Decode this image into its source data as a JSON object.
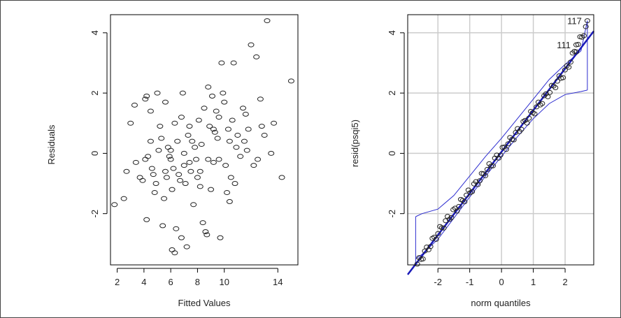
{
  "chart_data": [
    {
      "type": "scatter",
      "xlabel": "Fitted Values",
      "ylabel": "Residuals",
      "xlim": [
        1.5,
        15.5
      ],
      "ylim": [
        -3.7,
        4.6
      ],
      "xticks": [
        2,
        4,
        6,
        8,
        10,
        14
      ],
      "yticks": [
        -2,
        0,
        2,
        4
      ],
      "points": [
        [
          1.8,
          -1.7
        ],
        [
          2.5,
          -1.5
        ],
        [
          2.7,
          -0.6
        ],
        [
          3.0,
          1.0
        ],
        [
          3.3,
          1.6
        ],
        [
          3.4,
          -0.3
        ],
        [
          3.7,
          -0.8
        ],
        [
          3.9,
          -0.9
        ],
        [
          4.1,
          -0.2
        ],
        [
          4.1,
          1.8
        ],
        [
          4.2,
          1.9
        ],
        [
          4.2,
          -2.2
        ],
        [
          4.3,
          -0.1
        ],
        [
          4.5,
          1.4
        ],
        [
          4.5,
          0.4
        ],
        [
          4.6,
          -0.5
        ],
        [
          4.7,
          -0.7
        ],
        [
          4.9,
          -1.0
        ],
        [
          5.0,
          2.0
        ],
        [
          5.1,
          0.1
        ],
        [
          5.3,
          0.5
        ],
        [
          5.4,
          -2.4
        ],
        [
          5.5,
          -1.5
        ],
        [
          5.6,
          1.7
        ],
        [
          5.7,
          -0.8
        ],
        [
          5.8,
          0.2
        ],
        [
          5.9,
          -0.1
        ],
        [
          6.0,
          -0.2
        ],
        [
          6.1,
          -3.2
        ],
        [
          6.1,
          -1.2
        ],
        [
          6.2,
          -0.5
        ],
        [
          6.3,
          -3.3
        ],
        [
          6.3,
          1.0
        ],
        [
          6.4,
          -2.5
        ],
        [
          6.5,
          0.4
        ],
        [
          6.6,
          -0.7
        ],
        [
          6.7,
          -0.9
        ],
        [
          6.8,
          -2.8
        ],
        [
          6.9,
          2.0
        ],
        [
          7.0,
          0.0
        ],
        [
          7.1,
          -1.0
        ],
        [
          7.2,
          -3.1
        ],
        [
          7.3,
          0.6
        ],
        [
          7.4,
          -0.3
        ],
        [
          7.5,
          -0.6
        ],
        [
          7.6,
          0.4
        ],
        [
          7.7,
          -1.7
        ],
        [
          7.8,
          0.2
        ],
        [
          7.9,
          -0.2
        ],
        [
          8.0,
          -0.8
        ],
        [
          8.1,
          1.1
        ],
        [
          8.2,
          -0.6
        ],
        [
          8.3,
          0.3
        ],
        [
          8.4,
          -2.3
        ],
        [
          8.5,
          1.5
        ],
        [
          8.6,
          -2.6
        ],
        [
          8.7,
          -2.7
        ],
        [
          8.8,
          2.2
        ],
        [
          8.9,
          0.9
        ],
        [
          9.0,
          -1.2
        ],
        [
          9.1,
          1.9
        ],
        [
          9.2,
          -0.3
        ],
        [
          9.3,
          0.7
        ],
        [
          9.4,
          1.4
        ],
        [
          9.5,
          0.5
        ],
        [
          9.6,
          -0.2
        ],
        [
          9.7,
          -2.8
        ],
        [
          9.8,
          3.0
        ],
        [
          9.9,
          2.0
        ],
        [
          10.0,
          1.7
        ],
        [
          10.1,
          -0.4
        ],
        [
          10.2,
          -1.3
        ],
        [
          10.3,
          0.8
        ],
        [
          10.4,
          -1.6
        ],
        [
          10.5,
          -0.8
        ],
        [
          10.6,
          1.1
        ],
        [
          10.7,
          3.0
        ],
        [
          10.8,
          -1.0
        ],
        [
          10.9,
          0.2
        ],
        [
          11.0,
          0.6
        ],
        [
          11.2,
          -0.1
        ],
        [
          11.4,
          1.5
        ],
        [
          11.5,
          0.4
        ],
        [
          11.6,
          1.3
        ],
        [
          11.7,
          0.1
        ],
        [
          12.0,
          3.6
        ],
        [
          12.2,
          -0.4
        ],
        [
          12.4,
          3.2
        ],
        [
          12.7,
          1.8
        ],
        [
          12.8,
          0.9
        ],
        [
          13.0,
          0.6
        ],
        [
          13.2,
          4.4
        ],
        [
          13.5,
          0.0
        ],
        [
          13.7,
          1.0
        ],
        [
          14.3,
          -0.8
        ],
        [
          15.0,
          2.4
        ],
        [
          6.8,
          1.2
        ],
        [
          7.4,
          0.9
        ],
        [
          8.8,
          -0.2
        ],
        [
          9.2,
          0.8
        ],
        [
          10.4,
          0.4
        ],
        [
          6.0,
          0.1
        ],
        [
          4.8,
          -1.3
        ],
        [
          5.2,
          0.9
        ],
        [
          11.8,
          0.8
        ],
        [
          12.5,
          -0.2
        ],
        [
          8.2,
          -1.1
        ],
        [
          7.0,
          -0.4
        ],
        [
          9.6,
          1.2
        ],
        [
          5.6,
          -0.6
        ]
      ]
    },
    {
      "type": "scatter",
      "subtype": "qq",
      "xlabel": "norm quantiles",
      "ylabel": "resid(psqi5)",
      "xlim": [
        -2.95,
        2.9
      ],
      "ylim": [
        -3.7,
        4.6
      ],
      "xticks": [
        -2,
        -1,
        0,
        1,
        2
      ],
      "yticks": [
        -2,
        0,
        2,
        4
      ],
      "reference_line": {
        "intercept": 0.05,
        "slope": 1.38
      },
      "envelope": {
        "x": [
          -2.7,
          -2.5,
          -2.0,
          -1.5,
          -1.0,
          -0.5,
          0.0,
          0.5,
          1.0,
          1.5,
          2.0,
          2.5,
          2.7
        ],
        "upper": [
          -2.1,
          -2.0,
          -1.85,
          -1.4,
          -0.75,
          -0.1,
          0.5,
          1.15,
          1.8,
          2.45,
          2.95,
          3.4,
          4.4
        ],
        "lower": [
          -3.5,
          -3.35,
          -2.85,
          -2.15,
          -1.45,
          -0.75,
          -0.1,
          0.55,
          1.15,
          1.65,
          1.95,
          2.05,
          2.1
        ]
      },
      "annotations": [
        {
          "label": "117",
          "x": 2.7,
          "y": 4.4
        },
        {
          "label": "111",
          "x": 2.35,
          "y": 3.6
        }
      ]
    }
  ]
}
